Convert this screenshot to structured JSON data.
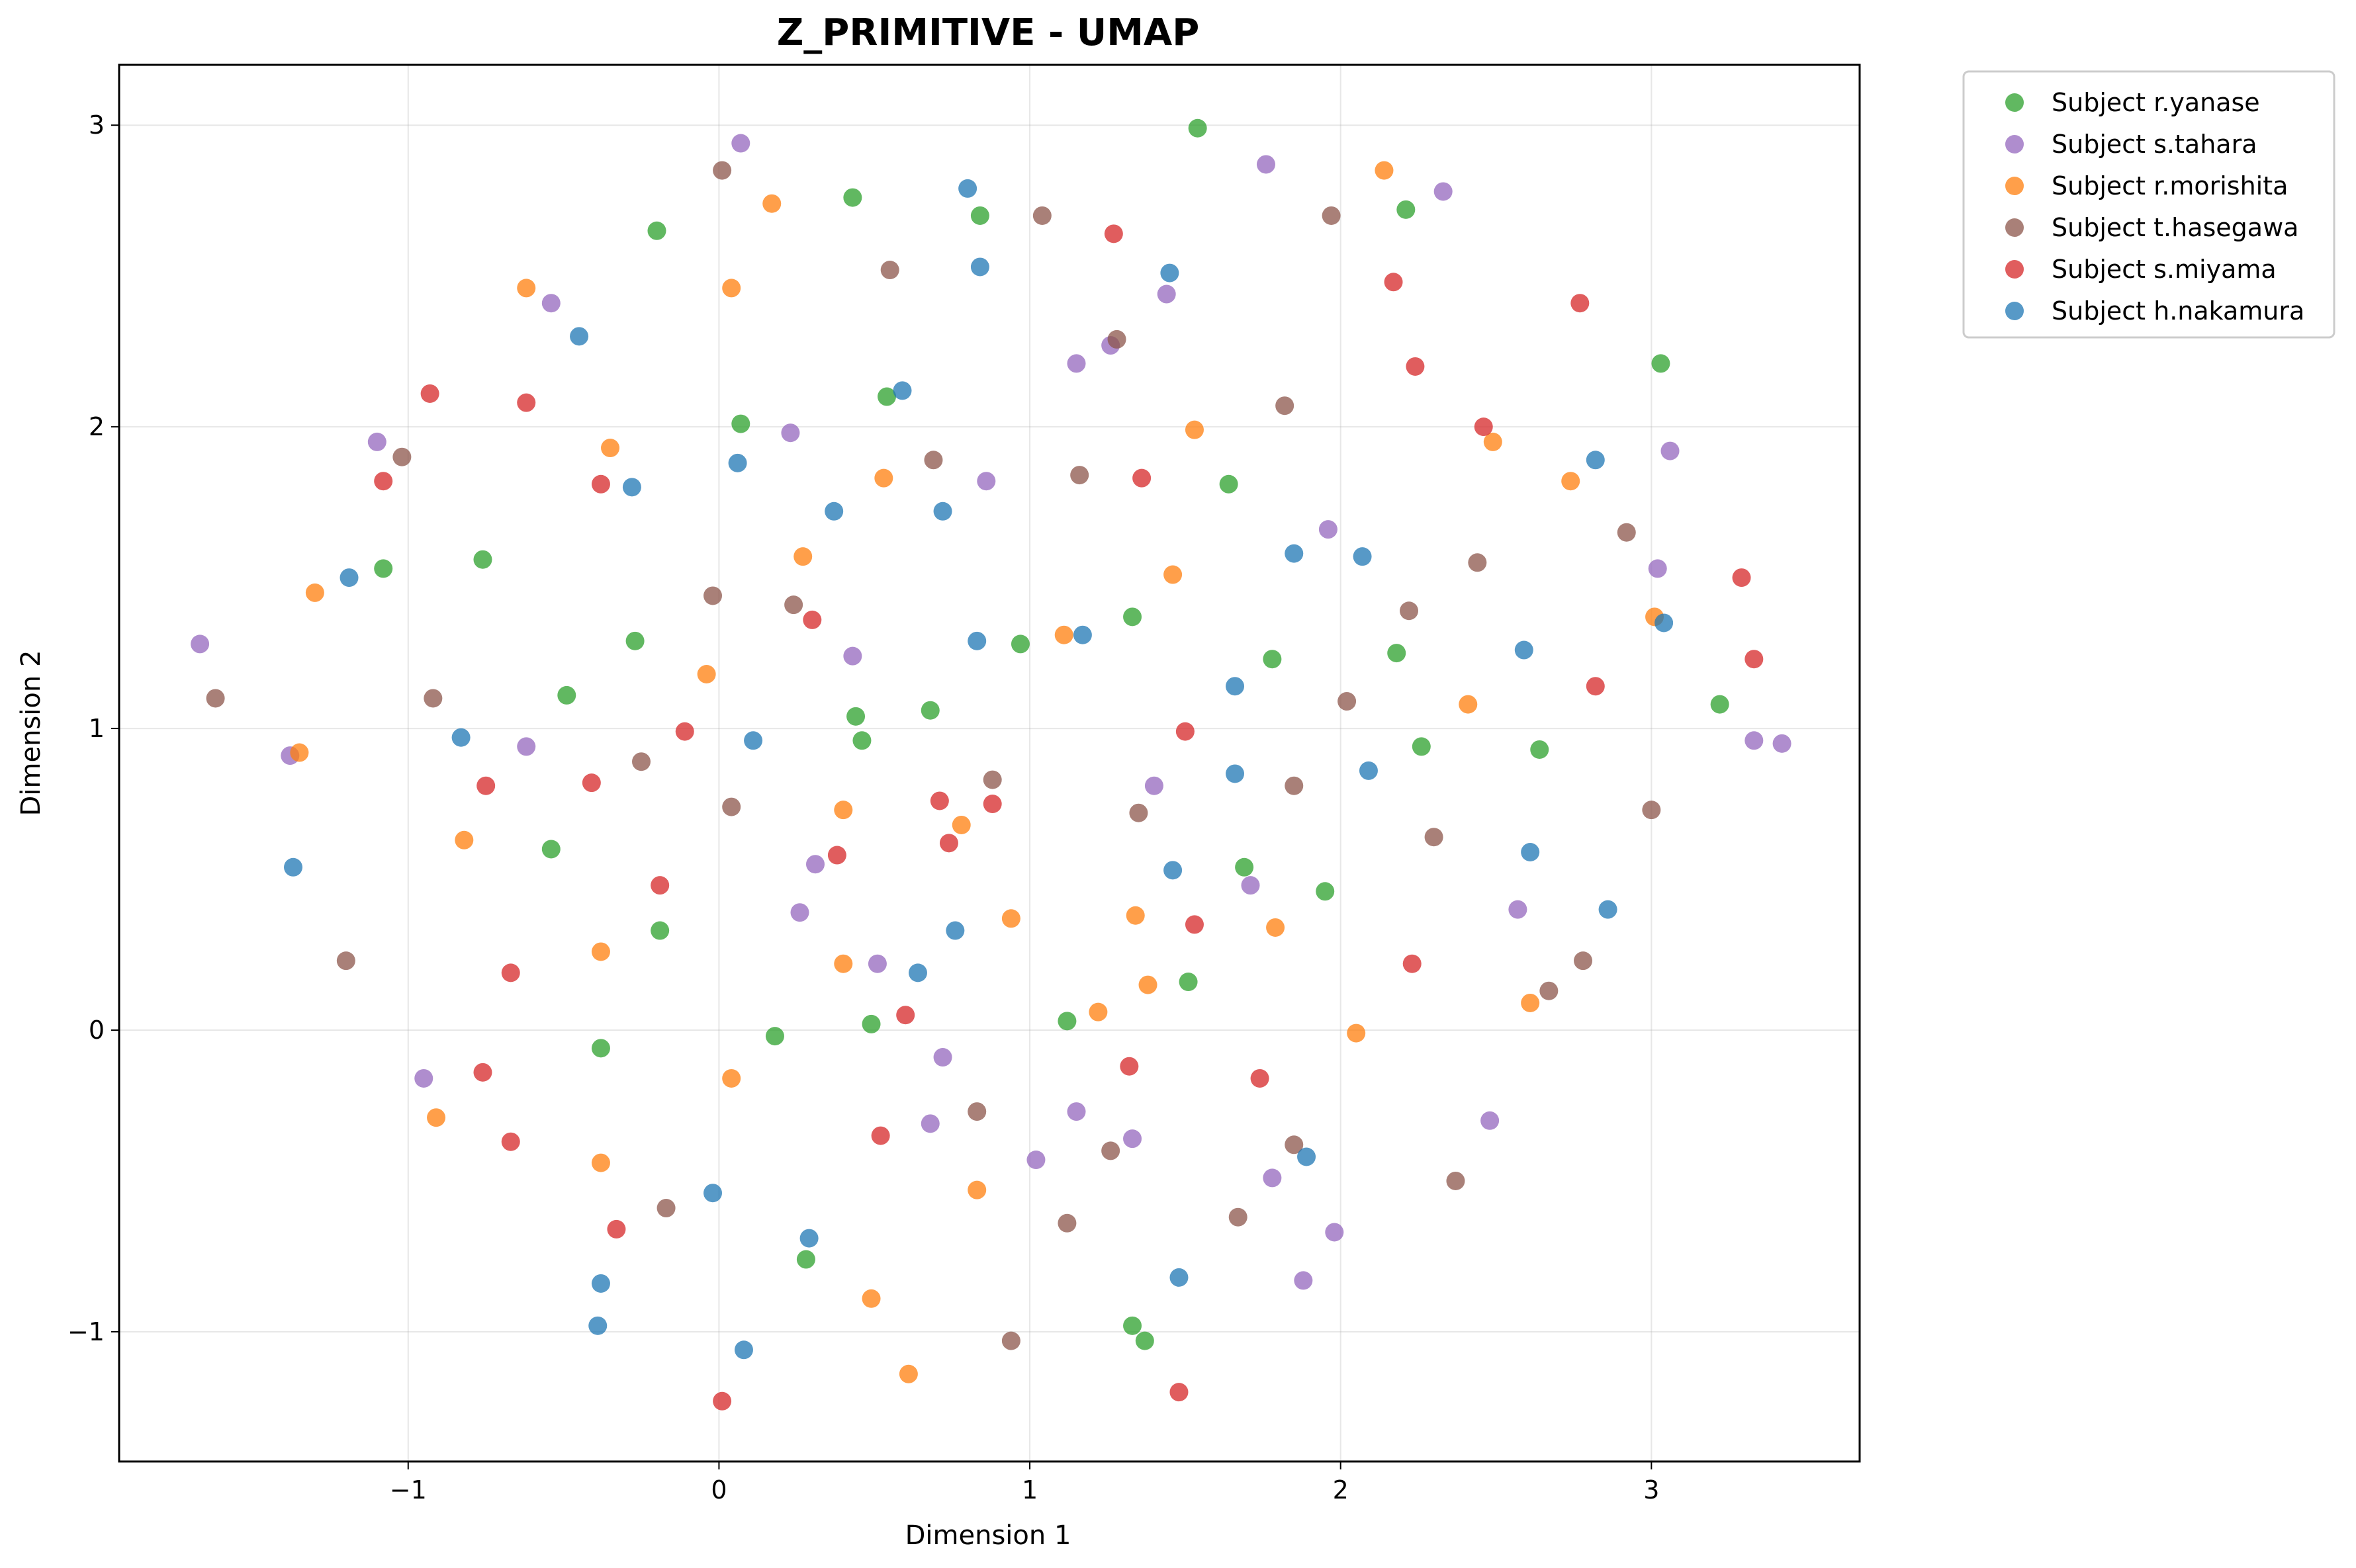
{
  "chart_data": {
    "type": "scatter",
    "title": "Z_PRIMITIVE - UMAP",
    "xlabel": "Dimension 1",
    "ylabel": "Dimension 2",
    "xlim": [
      -1.93,
      3.67
    ],
    "ylim": [
      -1.43,
      3.2
    ],
    "xticks": [
      {
        "value": -1,
        "label": "−1"
      },
      {
        "value": 0,
        "label": "0"
      },
      {
        "value": 1,
        "label": "1"
      },
      {
        "value": 2,
        "label": "2"
      },
      {
        "value": 3,
        "label": "3"
      }
    ],
    "yticks": [
      {
        "value": -1,
        "label": "−1"
      },
      {
        "value": 0,
        "label": "0"
      },
      {
        "value": 1,
        "label": "1"
      },
      {
        "value": 2,
        "label": "2"
      },
      {
        "value": 3,
        "label": "3"
      }
    ],
    "grid": true,
    "legend_position": "outside-top-right",
    "series": [
      {
        "name": "Subject r.yanase",
        "color": "#2ca02c",
        "points": [
          [
            1.54,
            2.99
          ],
          [
            0.43,
            2.76
          ],
          [
            0.84,
            2.7
          ],
          [
            -0.2,
            2.65
          ],
          [
            2.21,
            2.72
          ],
          [
            0.07,
            2.01
          ],
          [
            0.54,
            2.1
          ],
          [
            3.03,
            2.21
          ],
          [
            -1.08,
            1.53
          ],
          [
            -0.76,
            1.56
          ],
          [
            1.64,
            1.81
          ],
          [
            -0.27,
            1.29
          ],
          [
            0.97,
            1.28
          ],
          [
            1.33,
            1.37
          ],
          [
            1.78,
            1.23
          ],
          [
            2.18,
            1.25
          ],
          [
            -0.49,
            1.11
          ],
          [
            0.44,
            1.04
          ],
          [
            0.46,
            0.96
          ],
          [
            0.68,
            1.06
          ],
          [
            3.22,
            1.08
          ],
          [
            2.26,
            0.94
          ],
          [
            2.64,
            0.93
          ],
          [
            -0.54,
            0.6
          ],
          [
            -0.19,
            0.33
          ],
          [
            1.69,
            0.54
          ],
          [
            1.95,
            0.46
          ],
          [
            1.51,
            0.16
          ],
          [
            1.12,
            0.03
          ],
          [
            0.49,
            0.02
          ],
          [
            0.18,
            -0.02
          ],
          [
            -0.38,
            -0.06
          ],
          [
            0.28,
            -0.76
          ],
          [
            1.33,
            -0.98
          ],
          [
            1.37,
            -1.03
          ]
        ]
      },
      {
        "name": "Subject s.tahara",
        "color": "#9467bd",
        "points": [
          [
            0.07,
            2.94
          ],
          [
            1.76,
            2.87
          ],
          [
            2.33,
            2.78
          ],
          [
            -0.54,
            2.41
          ],
          [
            1.44,
            2.44
          ],
          [
            1.15,
            2.21
          ],
          [
            1.26,
            2.27
          ],
          [
            -1.1,
            1.95
          ],
          [
            0.23,
            1.98
          ],
          [
            0.86,
            1.82
          ],
          [
            3.06,
            1.92
          ],
          [
            1.96,
            1.66
          ],
          [
            3.02,
            1.53
          ],
          [
            -1.67,
            1.28
          ],
          [
            0.43,
            1.24
          ],
          [
            -1.38,
            0.91
          ],
          [
            -0.62,
            0.94
          ],
          [
            1.4,
            0.81
          ],
          [
            3.33,
            0.96
          ],
          [
            3.42,
            0.95
          ],
          [
            0.31,
            0.55
          ],
          [
            1.71,
            0.48
          ],
          [
            0.26,
            0.39
          ],
          [
            2.57,
            0.4
          ],
          [
            0.51,
            0.22
          ],
          [
            -0.95,
            -0.16
          ],
          [
            0.72,
            -0.09
          ],
          [
            0.68,
            -0.31
          ],
          [
            1.15,
            -0.27
          ],
          [
            1.33,
            -0.36
          ],
          [
            2.48,
            -0.3
          ],
          [
            1.02,
            -0.43
          ],
          [
            1.78,
            -0.49
          ],
          [
            1.98,
            -0.67
          ],
          [
            1.88,
            -0.83
          ]
        ]
      },
      {
        "name": "Subject r.morishita",
        "color": "#ff7f0e",
        "points": [
          [
            2.14,
            2.85
          ],
          [
            0.17,
            2.74
          ],
          [
            0.04,
            2.46
          ],
          [
            -0.62,
            2.46
          ],
          [
            -0.35,
            1.93
          ],
          [
            1.53,
            1.99
          ],
          [
            2.49,
            1.95
          ],
          [
            0.53,
            1.83
          ],
          [
            2.74,
            1.82
          ],
          [
            -1.3,
            1.45
          ],
          [
            0.27,
            1.57
          ],
          [
            1.46,
            1.51
          ],
          [
            3.01,
            1.37
          ],
          [
            -0.04,
            1.18
          ],
          [
            1.11,
            1.31
          ],
          [
            2.41,
            1.08
          ],
          [
            -1.35,
            0.92
          ],
          [
            -0.82,
            0.63
          ],
          [
            0.4,
            0.73
          ],
          [
            0.78,
            0.68
          ],
          [
            0.94,
            0.37
          ],
          [
            1.34,
            0.38
          ],
          [
            1.79,
            0.34
          ],
          [
            -0.38,
            0.26
          ],
          [
            0.4,
            0.22
          ],
          [
            1.38,
            0.15
          ],
          [
            1.22,
            0.06
          ],
          [
            2.61,
            0.09
          ],
          [
            2.05,
            -0.01
          ],
          [
            0.04,
            -0.16
          ],
          [
            -0.91,
            -0.29
          ],
          [
            -0.38,
            -0.44
          ],
          [
            0.83,
            -0.53
          ],
          [
            0.49,
            -0.89
          ],
          [
            0.61,
            -1.14
          ]
        ]
      },
      {
        "name": "Subject t.hasegawa",
        "color": "#8c564b",
        "points": [
          [
            0.01,
            2.85
          ],
          [
            1.04,
            2.7
          ],
          [
            1.97,
            2.7
          ],
          [
            0.55,
            2.52
          ],
          [
            1.28,
            2.29
          ],
          [
            -1.02,
            1.9
          ],
          [
            0.69,
            1.89
          ],
          [
            1.16,
            1.84
          ],
          [
            1.82,
            2.07
          ],
          [
            2.92,
            1.65
          ],
          [
            2.44,
            1.55
          ],
          [
            -0.02,
            1.44
          ],
          [
            0.24,
            1.41
          ],
          [
            2.22,
            1.39
          ],
          [
            -1.62,
            1.1
          ],
          [
            -0.92,
            1.1
          ],
          [
            2.02,
            1.09
          ],
          [
            -0.25,
            0.89
          ],
          [
            0.04,
            0.74
          ],
          [
            0.88,
            0.83
          ],
          [
            1.35,
            0.72
          ],
          [
            1.85,
            0.81
          ],
          [
            3.0,
            0.73
          ],
          [
            2.3,
            0.64
          ],
          [
            -1.2,
            0.23
          ],
          [
            2.78,
            0.23
          ],
          [
            2.67,
            0.13
          ],
          [
            0.83,
            -0.27
          ],
          [
            1.26,
            -0.4
          ],
          [
            1.85,
            -0.38
          ],
          [
            -0.17,
            -0.59
          ],
          [
            1.12,
            -0.64
          ],
          [
            1.67,
            -0.62
          ],
          [
            2.37,
            -0.5
          ],
          [
            0.94,
            -1.03
          ]
        ]
      },
      {
        "name": "Subject s.miyama",
        "color": "#d62728",
        "points": [
          [
            1.27,
            2.64
          ],
          [
            2.17,
            2.48
          ],
          [
            2.77,
            2.41
          ],
          [
            2.24,
            2.2
          ],
          [
            -0.93,
            2.11
          ],
          [
            -0.62,
            2.08
          ],
          [
            2.46,
            2.0
          ],
          [
            -1.08,
            1.82
          ],
          [
            -0.38,
            1.81
          ],
          [
            1.36,
            1.83
          ],
          [
            3.29,
            1.5
          ],
          [
            0.3,
            1.36
          ],
          [
            3.33,
            1.23
          ],
          [
            2.82,
            1.14
          ],
          [
            -0.11,
            0.99
          ],
          [
            1.5,
            0.99
          ],
          [
            -0.41,
            0.82
          ],
          [
            -0.75,
            0.81
          ],
          [
            0.71,
            0.76
          ],
          [
            0.88,
            0.75
          ],
          [
            0.38,
            0.58
          ],
          [
            0.74,
            0.62
          ],
          [
            -0.19,
            0.48
          ],
          [
            1.53,
            0.35
          ],
          [
            2.23,
            0.22
          ],
          [
            -0.67,
            0.19
          ],
          [
            0.6,
            0.05
          ],
          [
            1.32,
            -0.12
          ],
          [
            1.74,
            -0.16
          ],
          [
            -0.76,
            -0.14
          ],
          [
            0.52,
            -0.35
          ],
          [
            -0.67,
            -0.37
          ],
          [
            -0.33,
            -0.66
          ],
          [
            1.48,
            -1.2
          ],
          [
            0.01,
            -1.23
          ]
        ]
      },
      {
        "name": "Subject h.nakamura",
        "color": "#1f77b4",
        "points": [
          [
            0.8,
            2.79
          ],
          [
            0.84,
            2.53
          ],
          [
            1.45,
            2.51
          ],
          [
            -0.45,
            2.3
          ],
          [
            0.59,
            2.12
          ],
          [
            0.06,
            1.88
          ],
          [
            -0.28,
            1.8
          ],
          [
            2.82,
            1.89
          ],
          [
            0.37,
            1.72
          ],
          [
            0.72,
            1.72
          ],
          [
            1.85,
            1.58
          ],
          [
            2.07,
            1.57
          ],
          [
            -1.19,
            1.5
          ],
          [
            3.04,
            1.35
          ],
          [
            0.83,
            1.29
          ],
          [
            1.17,
            1.31
          ],
          [
            2.59,
            1.26
          ],
          [
            1.66,
            1.14
          ],
          [
            -0.83,
            0.97
          ],
          [
            0.11,
            0.96
          ],
          [
            1.66,
            0.85
          ],
          [
            2.09,
            0.86
          ],
          [
            -1.37,
            0.54
          ],
          [
            2.61,
            0.59
          ],
          [
            1.46,
            0.53
          ],
          [
            0.76,
            0.33
          ],
          [
            2.86,
            0.4
          ],
          [
            0.64,
            0.19
          ],
          [
            1.89,
            -0.42
          ],
          [
            -0.02,
            -0.54
          ],
          [
            0.29,
            -0.69
          ],
          [
            -0.38,
            -0.84
          ],
          [
            1.48,
            -0.82
          ],
          [
            -0.39,
            -0.98
          ],
          [
            0.08,
            -1.06
          ]
        ]
      }
    ]
  }
}
